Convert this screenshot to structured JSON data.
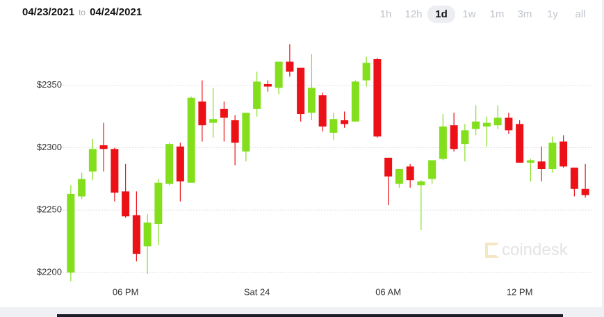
{
  "header": {
    "date_from": "04/23/2021",
    "separator": "to",
    "date_to": "04/24/2021",
    "ranges": [
      "1h",
      "12h",
      "1d",
      "1w",
      "1m",
      "3m",
      "1y",
      "all"
    ],
    "selected_range": 2
  },
  "watermark": "coindesk",
  "chart_data": {
    "type": "candlestick",
    "categories": [
      null,
      null,
      null,
      null,
      null,
      "06 PM",
      null,
      null,
      null,
      null,
      null,
      null,
      null,
      null,
      null,
      null,
      null,
      "Sat 24",
      null,
      null,
      null,
      null,
      null,
      null,
      null,
      null,
      null,
      null,
      null,
      "06 AM",
      null,
      null,
      null,
      null,
      null,
      null,
      null,
      null,
      null,
      null,
      null,
      "12 PM",
      null,
      null,
      null,
      null,
      null,
      null
    ],
    "open": [
      2200,
      2261,
      2281,
      2302,
      2299,
      2265,
      2246,
      2221,
      2239,
      2271,
      2301,
      2272,
      2337,
      2320,
      2331,
      2322,
      2297,
      2331,
      2351,
      2348,
      2369,
      2364,
      2328,
      2342,
      2312,
      2322,
      2321,
      2354,
      2371,
      2292,
      2271,
      2285,
      2270,
      2275,
      2291,
      2318,
      2303,
      2315,
      2317,
      2318,
      2324,
      2319,
      2288,
      2289,
      2283,
      2305,
      2284,
      2267
    ],
    "high": [
      2270,
      2280,
      2307,
      2320,
      2300,
      2287,
      2265,
      2247,
      2275,
      2304,
      2304,
      2341,
      2354,
      2348,
      2337,
      2326,
      2328,
      2361,
      2354,
      2369,
      2383,
      2364,
      2375,
      2344,
      2328,
      2329,
      2354,
      2373,
      2372,
      2292,
      2283,
      2287,
      2274,
      2290,
      2327,
      2328,
      2319,
      2334,
      2325,
      2334,
      2328,
      2322,
      2291,
      2301,
      2309,
      2310,
      2284,
      2287
    ],
    "low": [
      2193,
      2259,
      2274,
      2281,
      2257,
      2244,
      2209,
      2199,
      2222,
      2270,
      2257,
      2272,
      2305,
      2308,
      2305,
      2286,
      2289,
      2325,
      2345,
      2343,
      2357,
      2321,
      2322,
      2313,
      2306,
      2316,
      2321,
      2349,
      2308,
      2254,
      2268,
      2268,
      2234,
      2271,
      2290,
      2297,
      2289,
      2310,
      2301,
      2315,
      2311,
      2288,
      2273,
      2273,
      2280,
      2284,
      2261,
      2260
    ],
    "close": [
      2263,
      2275,
      2299,
      2299,
      2264,
      2245,
      2215,
      2240,
      2272,
      2303,
      2273,
      2340,
      2318,
      2323,
      2324,
      2304,
      2328,
      2353,
      2349,
      2369,
      2361,
      2327,
      2348,
      2317,
      2323,
      2319,
      2353,
      2368,
      2309,
      2277,
      2283,
      2274,
      2273,
      2290,
      2317,
      2299,
      2314,
      2321,
      2320,
      2324,
      2314,
      2288,
      2290,
      2283,
      2304,
      2285,
      2267,
      2262
    ],
    "up_color": "#83df1c",
    "down_color": "#ec1017",
    "ylim": [
      2190,
      2405
    ],
    "yticks": [
      {
        "value": 2200,
        "label": "$2200"
      },
      {
        "value": 2250,
        "label": "$2250"
      },
      {
        "value": 2300,
        "label": "$2300"
      },
      {
        "value": 2350,
        "label": "$2350"
      }
    ],
    "grid": true
  }
}
